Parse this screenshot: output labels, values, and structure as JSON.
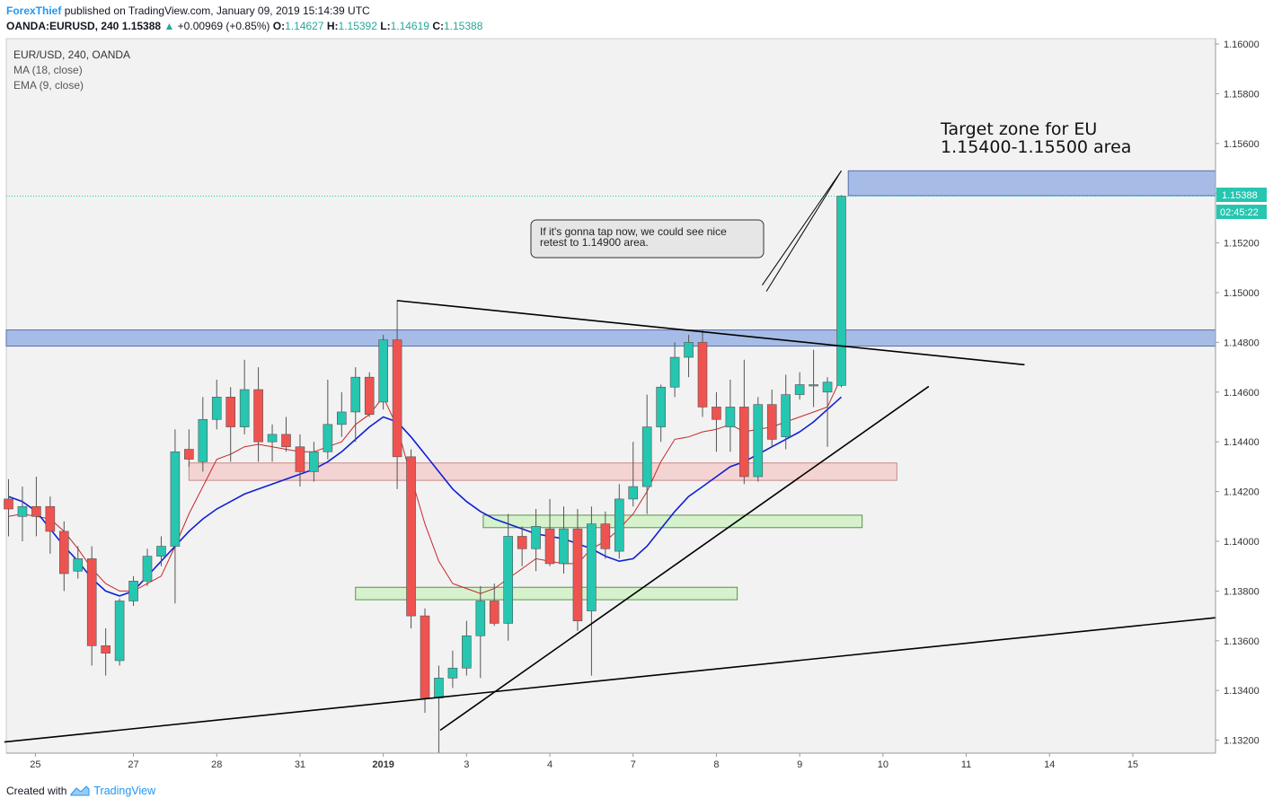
{
  "header": {
    "author": "ForexThief",
    "published_text": "published on TradingView.com, January 09, 2019 15:14:39 UTC",
    "symbol": "OANDA:EURUSD, 240",
    "last": "1.15388",
    "change_arrow": "▲",
    "change": "+0.00969 (+0.85%)",
    "o_label": "O:",
    "o_val": "1.14627",
    "h_label": "H:",
    "h_val": "1.15392",
    "l_label": "L:",
    "l_val": "1.14619",
    "c_label": "C:",
    "c_val": "1.15388"
  },
  "legend": {
    "title": "EUR/USD, 240, OANDA",
    "ma": "MA (18, close)",
    "ema": "EMA (9, close)"
  },
  "annotations": {
    "target_line1": "Target zone for EU",
    "target_line2": "1.15400-1.15500 area",
    "callout_line1": "If it's gonna tap now, we could see nice",
    "callout_line2": "retest to 1.14900 area.",
    "price_label": "1.15388",
    "countdown": "02:45:22"
  },
  "footer": {
    "created_with": "Created with",
    "brand": "TradingView"
  },
  "colors": {
    "bull": "#26c6b0",
    "bear": "#ef5350",
    "ma": "#0f1fd6",
    "ema": "#c62828",
    "zone_blue": "#a6bce6",
    "zone_red": "#f4d3d3",
    "zone_green": "#d6f2cc",
    "chart_bg": "#f2f2f2",
    "trendline": "#000000"
  },
  "chart_data": {
    "type": "candlestick",
    "symbol": "EUR/USD",
    "timeframe": "240",
    "ylim": [
      1.1315,
      1.161
    ],
    "y_ticks": [
      "1.16000",
      "1.15800",
      "1.15600",
      "1.15400",
      "1.15200",
      "1.15000",
      "1.14800",
      "1.14600",
      "1.14400",
      "1.14200",
      "1.14000",
      "1.13800",
      "1.13600",
      "1.13400",
      "1.13200"
    ],
    "x_ticks": [
      {
        "label": "25",
        "bar": 2
      },
      {
        "label": "27",
        "bar": 9
      },
      {
        "label": "28",
        "bar": 15
      },
      {
        "label": "31",
        "bar": 21
      },
      {
        "label": "2019",
        "bar": 27
      },
      {
        "label": "3",
        "bar": 33
      },
      {
        "label": "4",
        "bar": 39
      },
      {
        "label": "7",
        "bar": 45
      },
      {
        "label": "8",
        "bar": 51
      },
      {
        "label": "9",
        "bar": 57
      },
      {
        "label": "10",
        "bar": 63
      },
      {
        "label": "11",
        "bar": 69
      },
      {
        "label": "14",
        "bar": 75
      },
      {
        "label": "15",
        "bar": 81
      }
    ],
    "candles": [
      [
        1.1417,
        1.1425,
        1.1402,
        1.1413
      ],
      [
        1.141,
        1.1422,
        1.14,
        1.1414
      ],
      [
        1.1414,
        1.1426,
        1.1402,
        1.141
      ],
      [
        1.1414,
        1.1418,
        1.1395,
        1.1404
      ],
      [
        1.1404,
        1.1408,
        1.138,
        1.1387
      ],
      [
        1.1388,
        1.1398,
        1.1385,
        1.1393
      ],
      [
        1.1393,
        1.1398,
        1.135,
        1.1358
      ],
      [
        1.1358,
        1.1365,
        1.1346,
        1.1355
      ],
      [
        1.1352,
        1.1377,
        1.135,
        1.1376
      ],
      [
        1.1376,
        1.1386,
        1.1374,
        1.1384
      ],
      [
        1.1384,
        1.1397,
        1.1382,
        1.1394
      ],
      [
        1.1394,
        1.1402,
        1.139,
        1.1398
      ],
      [
        1.1398,
        1.1445,
        1.1375,
        1.1436
      ],
      [
        1.1437,
        1.1445,
        1.143,
        1.1433
      ],
      [
        1.1432,
        1.1458,
        1.1428,
        1.1449
      ],
      [
        1.1449,
        1.1465,
        1.1445,
        1.1458
      ],
      [
        1.1458,
        1.1462,
        1.1432,
        1.1446
      ],
      [
        1.1446,
        1.1473,
        1.1443,
        1.1461
      ],
      [
        1.1461,
        1.147,
        1.1432,
        1.144
      ],
      [
        1.144,
        1.1447,
        1.1432,
        1.1443
      ],
      [
        1.1443,
        1.145,
        1.1436,
        1.1438
      ],
      [
        1.1438,
        1.1443,
        1.1422,
        1.1428
      ],
      [
        1.1428,
        1.144,
        1.1424,
        1.1436
      ],
      [
        1.1436,
        1.1465,
        1.1433,
        1.1447
      ],
      [
        1.1447,
        1.146,
        1.1442,
        1.1452
      ],
      [
        1.1452,
        1.147,
        1.144,
        1.1466
      ],
      [
        1.1466,
        1.1468,
        1.145,
        1.1451
      ],
      [
        1.1456,
        1.1483,
        1.1453,
        1.1481
      ],
      [
        1.1481,
        1.1497,
        1.1421,
        1.1434
      ],
      [
        1.1434,
        1.1437,
        1.1365,
        1.137
      ],
      [
        1.137,
        1.1373,
        1.1331,
        1.1337
      ],
      [
        1.1337,
        1.135,
        1.1315,
        1.1345
      ],
      [
        1.1345,
        1.1356,
        1.1341,
        1.1349
      ],
      [
        1.1349,
        1.1368,
        1.1346,
        1.1362
      ],
      [
        1.1362,
        1.1382,
        1.1345,
        1.1376
      ],
      [
        1.1376,
        1.1383,
        1.1366,
        1.1367
      ],
      [
        1.1367,
        1.1411,
        1.136,
        1.1402
      ],
      [
        1.1402,
        1.1406,
        1.139,
        1.1397
      ],
      [
        1.1397,
        1.1413,
        1.1388,
        1.1406
      ],
      [
        1.1405,
        1.1417,
        1.139,
        1.1391
      ],
      [
        1.1391,
        1.1414,
        1.1387,
        1.1405
      ],
      [
        1.1405,
        1.1413,
        1.1364,
        1.1368
      ],
      [
        1.1372,
        1.1414,
        1.1346,
        1.1407
      ],
      [
        1.1407,
        1.1412,
        1.1393,
        1.1397
      ],
      [
        1.1396,
        1.1423,
        1.1393,
        1.1417
      ],
      [
        1.1417,
        1.144,
        1.1414,
        1.1422
      ],
      [
        1.1422,
        1.1459,
        1.1411,
        1.1446
      ],
      [
        1.1446,
        1.1463,
        1.144,
        1.1462
      ],
      [
        1.1462,
        1.148,
        1.1458,
        1.1474
      ],
      [
        1.1474,
        1.1483,
        1.1466,
        1.148
      ],
      [
        1.148,
        1.1485,
        1.145,
        1.1454
      ],
      [
        1.1454,
        1.146,
        1.1436,
        1.1449
      ],
      [
        1.1446,
        1.1465,
        1.1436,
        1.1454
      ],
      [
        1.1454,
        1.1473,
        1.1423,
        1.1426
      ],
      [
        1.1426,
        1.1458,
        1.1424,
        1.1455
      ],
      [
        1.1455,
        1.1461,
        1.1438,
        1.1441
      ],
      [
        1.1442,
        1.1467,
        1.1437,
        1.1459
      ],
      [
        1.1459,
        1.1468,
        1.1457,
        1.1463
      ],
      [
        1.1463,
        1.1477,
        1.1454,
        1.1463
      ],
      [
        1.146,
        1.1466,
        1.1438,
        1.1464
      ],
      [
        1.14627,
        1.15392,
        1.14619,
        1.15388
      ]
    ],
    "ma_18": [
      1.1418,
      1.1416,
      1.1412,
      1.1405,
      1.1398,
      1.1392,
      1.1385,
      1.138,
      1.1378,
      1.138,
      1.1386,
      1.1392,
      1.1398,
      1.1404,
      1.1409,
      1.1413,
      1.1416,
      1.1419,
      1.1421,
      1.1423,
      1.1425,
      1.1427,
      1.1429,
      1.1432,
      1.1436,
      1.1441,
      1.1446,
      1.145,
      1.1448,
      1.1442,
      1.1435,
      1.1428,
      1.1421,
      1.1416,
      1.1412,
      1.1409,
      1.1407,
      1.1405,
      1.1403,
      1.1402,
      1.1401,
      1.1399,
      1.1397,
      1.1394,
      1.1392,
      1.1393,
      1.1398,
      1.1405,
      1.1412,
      1.1418,
      1.1422,
      1.1426,
      1.143,
      1.1432,
      1.1435,
      1.1438,
      1.1441,
      1.1444,
      1.1448,
      1.1453,
      1.1458
    ],
    "ema_9": [
      1.141,
      1.1411,
      1.141,
      1.1409,
      1.1404,
      1.1397,
      1.1389,
      1.1383,
      1.138,
      1.138,
      1.1383,
      1.1386,
      1.1398,
      1.1411,
      1.1422,
      1.1433,
      1.1435,
      1.1438,
      1.1439,
      1.1438,
      1.1437,
      1.1436,
      1.1436,
      1.1438,
      1.144,
      1.1447,
      1.1451,
      1.1458,
      1.1446,
      1.1426,
      1.1407,
      1.1392,
      1.1383,
      1.1381,
      1.1379,
      1.1381,
      1.1385,
      1.1389,
      1.1393,
      1.1392,
      1.1391,
      1.1391,
      1.1397,
      1.14,
      1.1405,
      1.1411,
      1.142,
      1.1432,
      1.1441,
      1.1442,
      1.1444,
      1.1445,
      1.1447,
      1.1444,
      1.1445,
      1.1446,
      1.1448,
      1.145,
      1.1452,
      1.1454,
      1.1466
    ],
    "zones": [
      {
        "name": "resistance",
        "y1": 1.14785,
        "y2": 1.1485,
        "x_from_bar": 0,
        "x_to_bar": "end",
        "color": "zone_blue"
      },
      {
        "name": "target",
        "y1": 1.1539,
        "y2": 1.1549,
        "x_from_bar": 60.5,
        "x_to_bar": 87,
        "color": "zone_blue"
      },
      {
        "name": "support-red",
        "y1": 1.14245,
        "y2": 1.14315,
        "x_from_bar": 13,
        "x_to_bar": 64,
        "color": "zone_red"
      },
      {
        "name": "support-green-1",
        "y1": 1.14055,
        "y2": 1.14105,
        "x_from_bar": 34.2,
        "x_to_bar": 61.5,
        "color": "zone_green"
      },
      {
        "name": "support-green-2",
        "y1": 1.13765,
        "y2": 1.13815,
        "x_from_bar": 25,
        "x_to_bar": 52.5,
        "color": "zone_green"
      }
    ],
    "trendlines": [
      {
        "name": "descending-resistance",
        "from": [
          28.0,
          1.14968
        ],
        "to": [
          73.2,
          1.1471
        ]
      },
      {
        "name": "rising-support",
        "from": [
          31.1,
          1.1324
        ],
        "to": [
          66.3,
          1.14623
        ]
      },
      {
        "name": "long-rising-support",
        "from": [
          -0.3,
          1.13193
        ],
        "to": [
          87.0,
          1.13693
        ]
      },
      {
        "name": "callout-pointer",
        "from": [
          54.3,
          1.1503
        ],
        "to": [
          60.0,
          1.1549
        ]
      }
    ],
    "current_price": 1.15388
  }
}
